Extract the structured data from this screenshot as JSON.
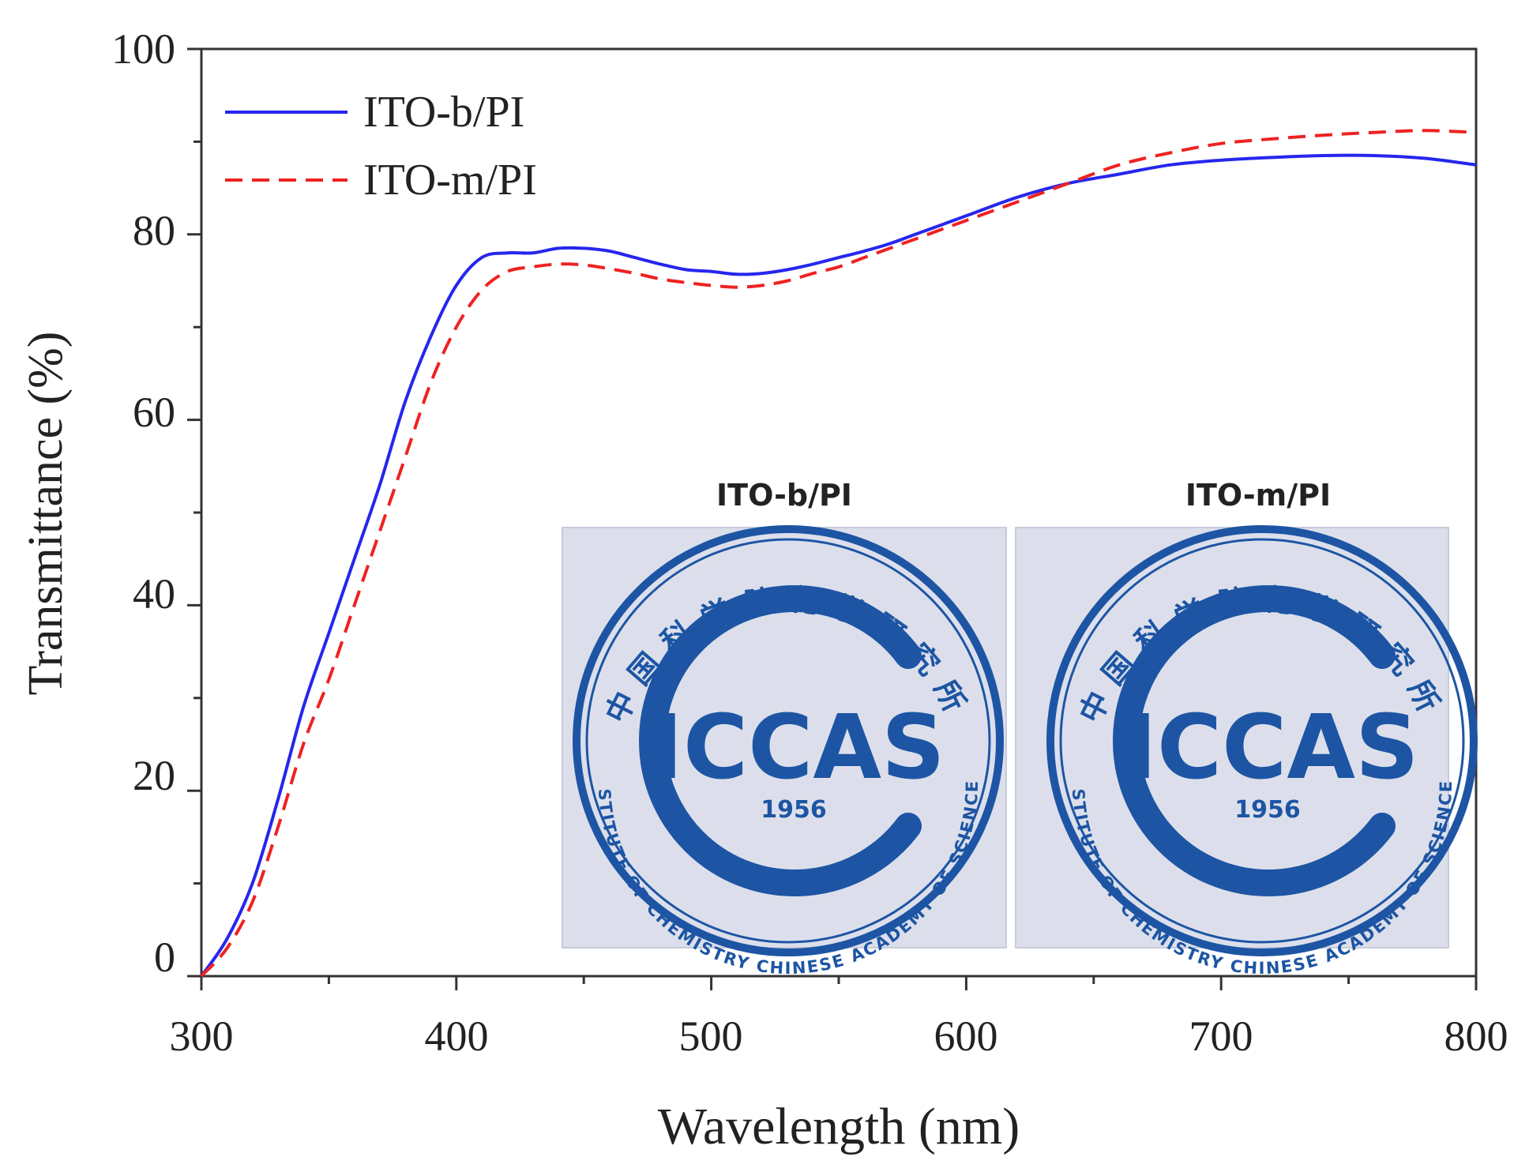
{
  "chart_data": {
    "type": "line",
    "xlabel": "Wavelength (nm)",
    "ylabel": "Transmittance (%)",
    "xlim": [
      300,
      800
    ],
    "ylim": [
      0,
      100
    ],
    "x_ticks": [
      300,
      400,
      500,
      600,
      700,
      800
    ],
    "y_ticks": [
      0,
      20,
      40,
      60,
      80,
      100
    ],
    "x_tick_labels": [
      "300",
      "400",
      "500",
      "600",
      "700",
      "800"
    ],
    "y_tick_labels": [
      "0",
      "20",
      "40",
      "60",
      "80",
      "100"
    ],
    "grid": false,
    "legend_position": "top-left",
    "series": [
      {
        "name": "ITO-b/PI",
        "color": "#2626ee",
        "style": "solid",
        "x": [
          300,
          310,
          320,
          330,
          340,
          350,
          360,
          370,
          380,
          390,
          400,
          410,
          420,
          430,
          440,
          450,
          460,
          470,
          480,
          490,
          500,
          510,
          520,
          530,
          540,
          550,
          560,
          570,
          580,
          590,
          600,
          620,
          640,
          660,
          680,
          700,
          720,
          740,
          760,
          780,
          800
        ],
        "y": [
          0,
          4,
          10,
          19,
          29,
          37,
          45,
          53,
          62,
          69,
          74.5,
          77.5,
          78,
          78,
          78.5,
          78.5,
          78.2,
          77.5,
          76.8,
          76.2,
          76,
          75.7,
          75.8,
          76.2,
          76.8,
          77.5,
          78.2,
          79,
          80,
          81,
          82,
          84,
          85.5,
          86.5,
          87.5,
          88,
          88.3,
          88.5,
          88.5,
          88.2,
          87.5
        ]
      },
      {
        "name": "ITO-m/PI",
        "color": "#ee2222",
        "style": "dashed",
        "x": [
          300,
          310,
          320,
          330,
          340,
          350,
          360,
          370,
          380,
          390,
          400,
          410,
          420,
          430,
          440,
          450,
          460,
          470,
          480,
          490,
          500,
          510,
          520,
          530,
          540,
          550,
          560,
          570,
          580,
          590,
          600,
          620,
          640,
          660,
          680,
          700,
          720,
          740,
          760,
          780,
          800
        ],
        "y": [
          0,
          3,
          8,
          16,
          25,
          32,
          40,
          48,
          56,
          64,
          70,
          74,
          76,
          76.5,
          76.8,
          76.7,
          76.3,
          75.8,
          75.2,
          74.8,
          74.5,
          74.3,
          74.5,
          75,
          75.8,
          76.5,
          77.5,
          78.5,
          79.5,
          80.5,
          81.5,
          83.5,
          85.5,
          87.5,
          88.8,
          89.8,
          90.3,
          90.7,
          91,
          91.2,
          91
        ]
      }
    ]
  },
  "inset": {
    "left_label": "ITO-b/PI",
    "right_label": "ITO-m/PI",
    "logo_text": "ICCAS",
    "logo_year": "1956",
    "logo_chinese": "中国科学院化学研究所",
    "logo_english": "INSTITUTE OF CHEMISTRY   CHINESE ACADEMY OF SCIENCES",
    "logo_color": "#1d55a4",
    "panel_color": "#dcdfeb"
  }
}
